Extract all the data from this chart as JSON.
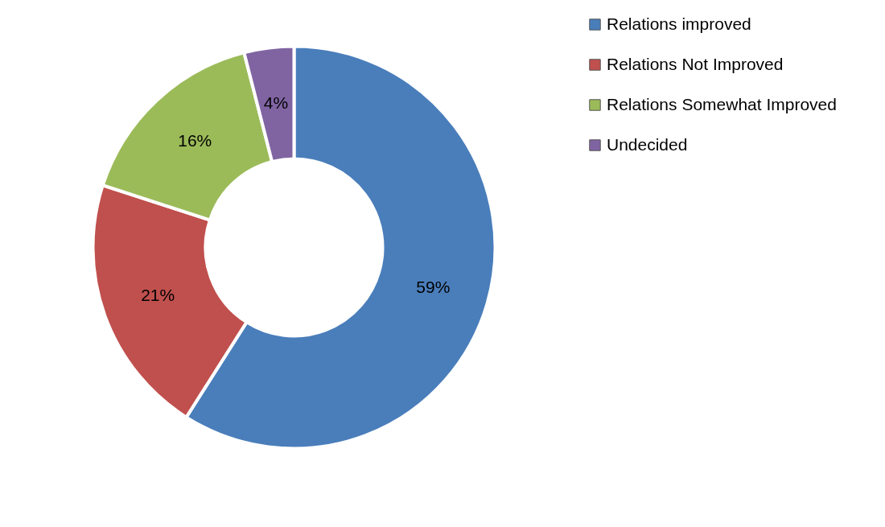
{
  "chart_data": {
    "type": "donut",
    "categories": [
      "Relations improved",
      "Relations Not Improved",
      "Relations Somewhat Improved",
      "Undecided"
    ],
    "values": [
      59,
      21,
      16,
      4
    ],
    "colors": [
      "#4a7ebb",
      "#c0504d",
      "#9bbb59",
      "#8064a2"
    ],
    "value_labels": [
      "59%",
      "21%",
      "16%",
      "4%"
    ],
    "legend": "right"
  }
}
